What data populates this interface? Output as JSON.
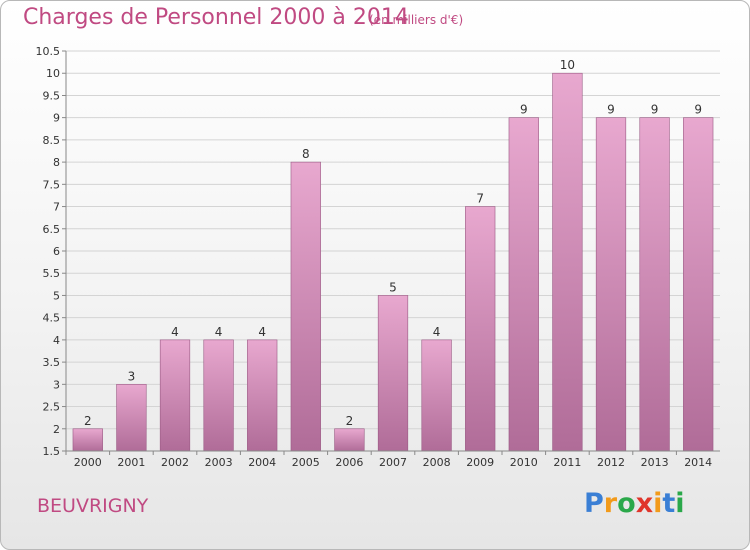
{
  "header": {
    "title": "Charges de Personnel 2000 à 2014",
    "unit_note": "(en milliers d'€)"
  },
  "footer": {
    "commune": "BEUVRIGNY",
    "logo_text": "Proxiti",
    "logo_colors": [
      "#3a7fd5",
      "#f29a1a",
      "#2aa84a",
      "#e0352b",
      "#f29a1a",
      "#3a7fd5",
      "#2aa84a"
    ]
  },
  "colors": {
    "title": "#c04a82",
    "bar_top": "#e8a8cf",
    "bar_bottom": "#b06c98",
    "grid": "#d4d4d4",
    "axis_text": "#333333"
  },
  "chart_data": {
    "type": "bar",
    "title": "Charges de Personnel 2000 à 2014",
    "subtitle": "(en milliers d'€)",
    "categories": [
      "2000",
      "2001",
      "2002",
      "2003",
      "2004",
      "2005",
      "2006",
      "2007",
      "2008",
      "2009",
      "2010",
      "2011",
      "2012",
      "2013",
      "2014"
    ],
    "values": [
      2,
      3,
      4,
      4,
      4,
      8,
      2,
      5,
      4,
      7,
      9,
      10,
      9,
      9,
      9
    ],
    "data_labels": [
      "2",
      "3",
      "4",
      "4",
      "4",
      "8",
      "2",
      "5",
      "4",
      "7",
      "9",
      "10",
      "9",
      "9",
      "9"
    ],
    "ylim": [
      1.5,
      10.5
    ],
    "yticks": [
      1.5,
      2,
      2.5,
      3,
      3.5,
      4,
      4.5,
      5,
      5.5,
      6,
      6.5,
      7,
      7.5,
      8,
      8.5,
      9,
      9.5,
      10,
      10.5
    ],
    "ytick_labels": [
      "1.5",
      "2",
      "2.5",
      "3",
      "3.5",
      "4",
      "4.5",
      "5",
      "5.5",
      "6",
      "6.5",
      "7",
      "7.5",
      "8",
      "8.5",
      "9",
      "9.5",
      "10",
      "10.5"
    ],
    "xlabel": "",
    "ylabel": "",
    "grid": true,
    "legend": "none"
  }
}
